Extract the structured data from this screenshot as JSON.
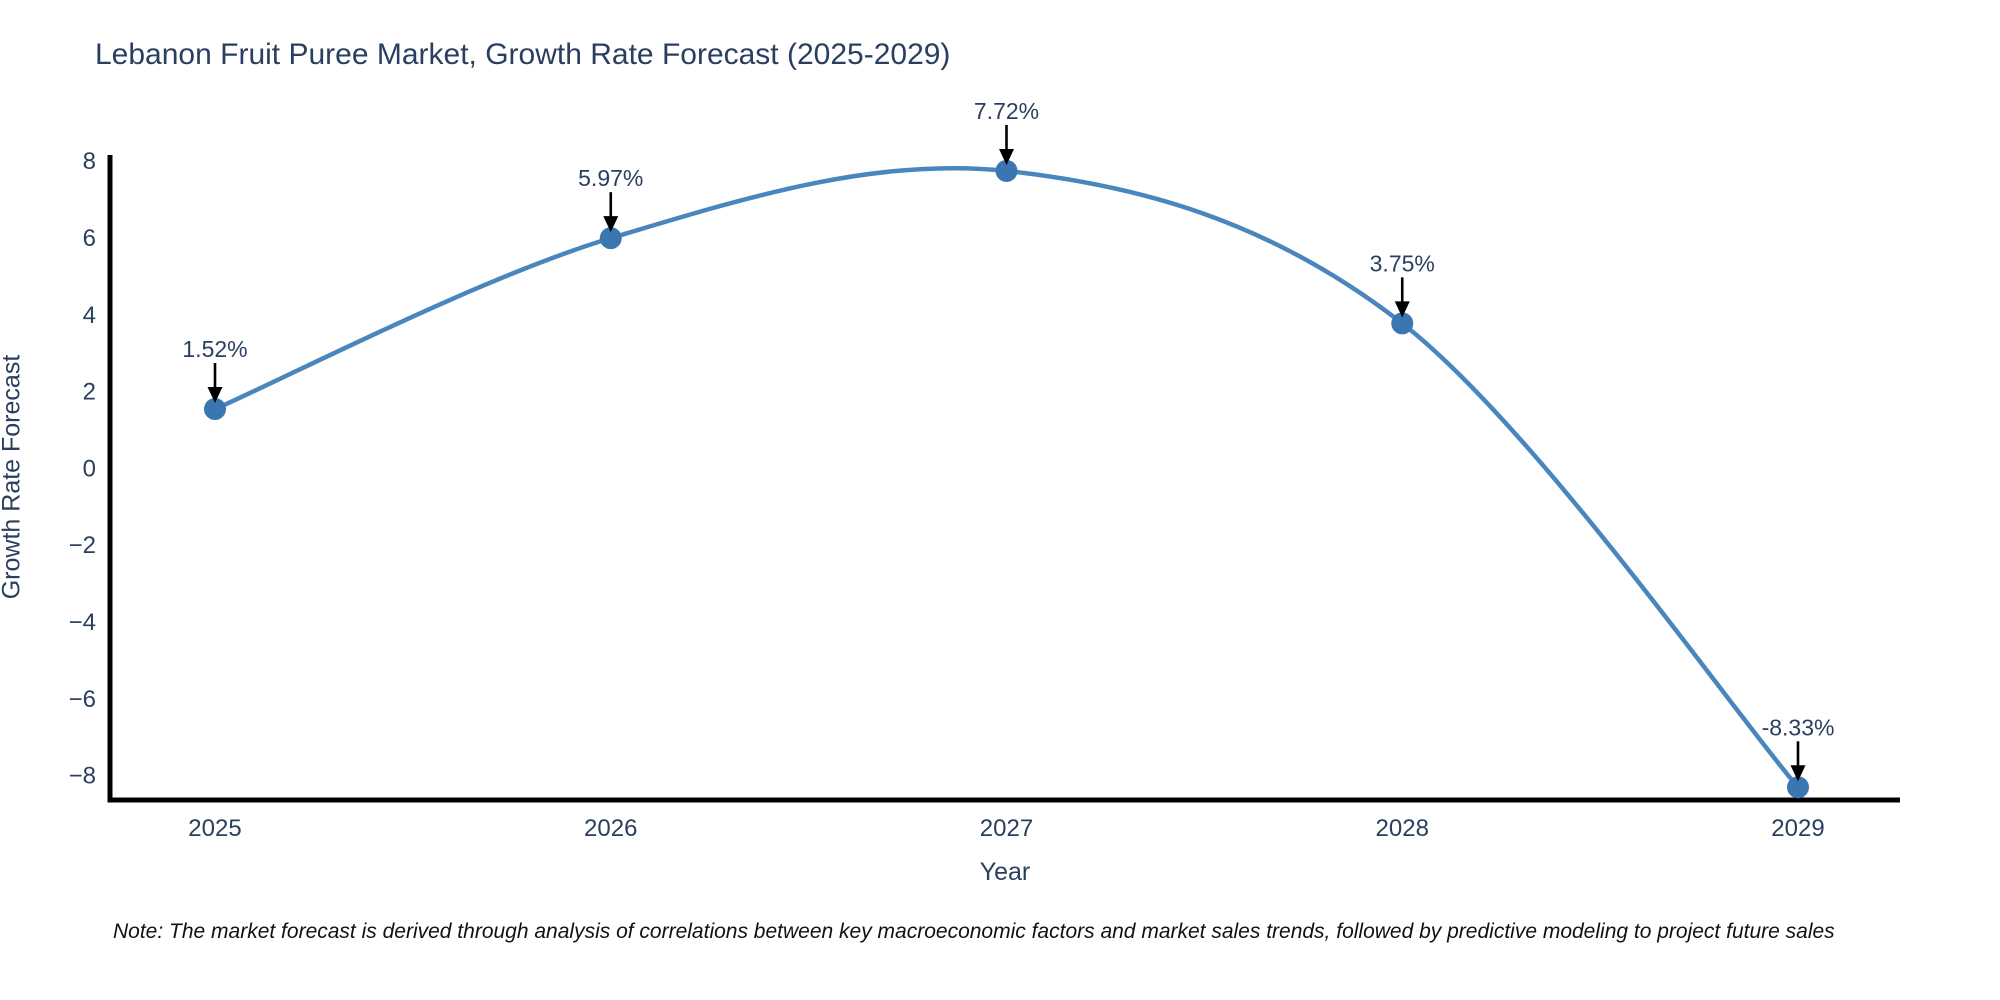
{
  "title": "Lebanon Fruit Puree Market, Growth Rate Forecast (2025-2029)",
  "note": "Note: The market forecast is derived through analysis of correlations between key macroeconomic factors and market sales trends, followed by predictive modeling to project future sales",
  "colors": {
    "line": "#4a86be",
    "marker": "#3b76b0",
    "text": "#2a3f5f",
    "annotation_text": "#2a3f5f",
    "axis_spine": "#000000",
    "arrow": "#000000",
    "background": "#ffffff"
  },
  "chart_data": {
    "type": "line",
    "title": "Lebanon Fruit Puree Market, Growth Rate Forecast (2025-2029)",
    "x": [
      2025,
      2026,
      2027,
      2028,
      2029
    ],
    "y": [
      1.52,
      5.97,
      7.72,
      3.75,
      -8.33
    ],
    "point_labels": [
      "1.52%",
      "5.97%",
      "7.72%",
      "3.75%",
      "-8.33%"
    ],
    "xlabel": "Year",
    "ylabel": "Growth Rate Forecast",
    "x_tick_labels": [
      "2025",
      "2026",
      "2027",
      "2028",
      "2029"
    ],
    "y_tick_values": [
      8,
      6,
      4,
      2,
      0,
      -2,
      -4,
      -6,
      -8
    ],
    "y_tick_labels": [
      "8",
      "6",
      "4",
      "2",
      "0",
      "−2",
      "−4",
      "−6",
      "−8"
    ],
    "ylim": [
      -8.7,
      8.1
    ],
    "grid": false,
    "legend_position": "none",
    "line_shape": "spline",
    "markers": true,
    "annotation_style": "value label above each point with black down-arrow"
  }
}
